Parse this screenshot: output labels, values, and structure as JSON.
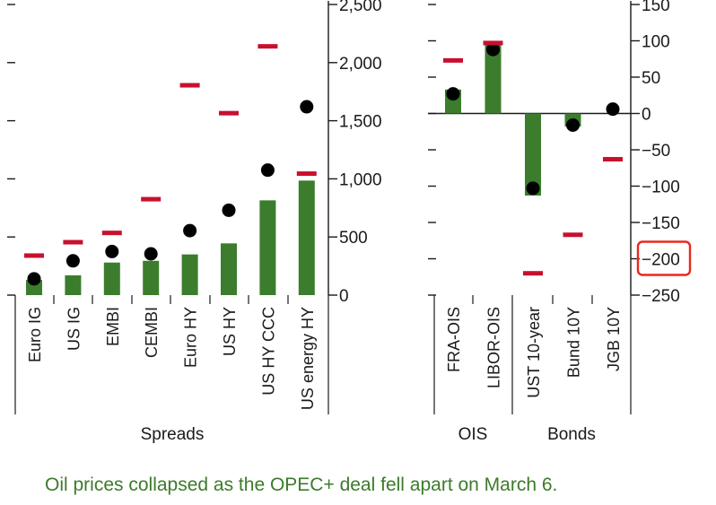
{
  "chart_data": [
    {
      "type": "bar",
      "group_label": "Spreads",
      "categories": [
        "Euro IG",
        "US IG",
        "EMBI",
        "CEMBI",
        "Euro HY",
        "US HY",
        "US HY CCC",
        "US energy HY"
      ],
      "series": [
        {
          "values": [
            130,
            170,
            280,
            295,
            350,
            445,
            815,
            985
          ]
        },
        {
          "values": [
            140,
            295,
            375,
            355,
            555,
            730,
            1075,
            1620
          ]
        },
        {
          "values": [
            340,
            455,
            535,
            825,
            1805,
            1565,
            2140,
            1045
          ]
        }
      ],
      "yaxis": {
        "side": "right",
        "ylim": [
          0,
          2500
        ],
        "ticks": [
          0,
          500,
          1000,
          1500,
          2000,
          2500
        ],
        "tick_labels": [
          "0",
          "500",
          "1,000",
          "1,500",
          "2,000",
          "2,500"
        ]
      },
      "colors": {
        "bar": "#3b7d2c",
        "dot": "#000000",
        "dash": "#c8102e"
      }
    },
    {
      "type": "bar",
      "groups": [
        {
          "label": "OIS",
          "categories": [
            "FRA-OIS",
            "LIBOR-OIS"
          ]
        },
        {
          "label": "Bonds",
          "categories": [
            "UST 10-year",
            "Bund 10Y",
            "JGB 10Y"
          ]
        }
      ],
      "categories": [
        "FRA-OIS",
        "LIBOR-OIS",
        "UST 10-year",
        "Bund 10Y",
        "JGB 10Y"
      ],
      "series": [
        {
          "values": [
            33,
            97,
            -113,
            -18,
            0
          ]
        },
        {
          "values": [
            27,
            88,
            -103,
            -16,
            6
          ]
        },
        {
          "values": [
            73,
            97,
            -220,
            -167,
            -63
          ]
        }
      ],
      "yaxis": {
        "side": "right",
        "ylim": [
          -250,
          150
        ],
        "ticks": [
          -250,
          -200,
          -150,
          -100,
          -50,
          0,
          50,
          100,
          150
        ],
        "tick_labels": [
          "-250",
          "-200",
          "-150",
          "-100",
          "-50",
          "0",
          "50",
          "100",
          "150"
        ],
        "highlighted_tick": "-200"
      },
      "colors": {
        "bar": "#3b7d2c",
        "dot": "#000000",
        "dash": "#c8102e",
        "highlight": "#e8291c"
      }
    }
  ],
  "caption": "Oil prices collapsed as the OPEC+ deal fell apart on March 6."
}
